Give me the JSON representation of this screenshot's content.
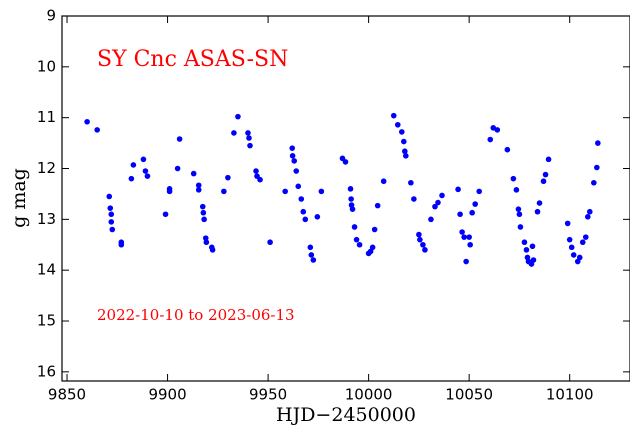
{
  "chart_data": {
    "type": "scatter",
    "xlabel": "HJD−2450000",
    "ylabel": "g mag",
    "annotations": [
      "SY Cnc  ASAS-SN",
      "2022-10-10 to 2023-06-13"
    ],
    "xlim": [
      9847.5,
      10130
    ],
    "ylim": [
      16.18,
      9
    ],
    "xticks": [
      9850,
      9900,
      9950,
      10000,
      10050,
      10100
    ],
    "yticks": [
      9,
      10,
      11,
      12,
      13,
      14,
      15,
      16
    ],
    "color": "#0000ff",
    "x": [
      9860,
      9865,
      9871,
      9871.5,
      9872,
      9872,
      9872.5,
      9877,
      9877,
      9882,
      9883,
      9888,
      9889,
      9890,
      9899,
      9901,
      9901,
      9905,
      9906,
      9913,
      9915.5,
      9915.5,
      9917.5,
      9917.8,
      9918.2,
      9919,
      9919.3,
      9922,
      9922.4,
      9928,
      9930,
      9933,
      9935,
      9940,
      9940.5,
      9941,
      9944,
      9944.5,
      9946,
      9951,
      9958.5,
      9962,
      9962.2,
      9963,
      9964,
      9965,
      9966.5,
      9967.5,
      9968.5,
      9971,
      9971.5,
      9972.5,
      9974.5,
      9976.5,
      9987,
      9988.5,
      9991,
      9991.3,
      9991.5,
      9992,
      9993,
      9994,
      9995.5,
      10000,
      10001,
      10002,
      10003,
      10004.5,
      10007.5,
      10012.5,
      10014.5,
      10016.5,
      10017.5,
      10018,
      10018.5,
      10021,
      10022.5,
      10025,
      10025.5,
      10027,
      10028,
      10031,
      10033,
      10034.5,
      10036.5,
      10044.5,
      10045.5,
      10046.5,
      10047.5,
      10048.5,
      10050,
      10050.5,
      10051.5,
      10053,
      10055,
      10060.5,
      10062,
      10064,
      10069,
      10072,
      10073.5,
      10074.5,
      10075,
      10075.5,
      10077.5,
      10078.5,
      10079,
      10079.5,
      10081,
      10082,
      10081.5,
      10084,
      10085,
      10087,
      10088,
      10089.5,
      10099,
      10100,
      10101,
      10102,
      10104,
      10105,
      10106.5,
      10108,
      10109,
      10110,
      10112,
      10113.5,
      10114
    ],
    "values": [
      11.08,
      11.24,
      12.55,
      12.78,
      12.9,
      13.05,
      13.2,
      13.45,
      13.5,
      12.2,
      11.93,
      11.82,
      12.05,
      12.15,
      12.9,
      12.4,
      12.45,
      12,
      11.42,
      12.1,
      12.33,
      12.42,
      12.75,
      12.87,
      13,
      13.37,
      13.45,
      13.55,
      13.6,
      12.45,
      12.18,
      11.3,
      10.98,
      11.3,
      11.4,
      11.55,
      12.05,
      12.15,
      12.22,
      13.45,
      12.45,
      11.6,
      11.75,
      11.85,
      12.05,
      12.35,
      12.6,
      12.85,
      13,
      13.55,
      13.7,
      13.8,
      12.95,
      12.45,
      11.8,
      11.87,
      12.4,
      12.6,
      12.72,
      12.8,
      13.15,
      13.4,
      13.5,
      13.67,
      13.63,
      13.55,
      13.2,
      12.73,
      12.25,
      10.96,
      11.14,
      11.28,
      11.47,
      11.66,
      11.75,
      12.28,
      12.6,
      13.3,
      13.4,
      13.5,
      13.6,
      13,
      12.75,
      12.67,
      12.53,
      12.41,
      12.9,
      13.25,
      13.35,
      13.83,
      13.35,
      13.5,
      12.87,
      12.7,
      12.45,
      11.43,
      11.2,
      11.24,
      11.63,
      12.2,
      12.42,
      12.8,
      12.9,
      13.15,
      13.45,
      13.6,
      13.75,
      13.83,
      13.88,
      13.8,
      13.53,
      12.85,
      12.68,
      12.25,
      12.12,
      11.82,
      13.08,
      13.4,
      13.55,
      13.7,
      13.83,
      13.75,
      13.45,
      13.35,
      12.95,
      12.85,
      12.28,
      11.98,
      11.5
    ]
  }
}
